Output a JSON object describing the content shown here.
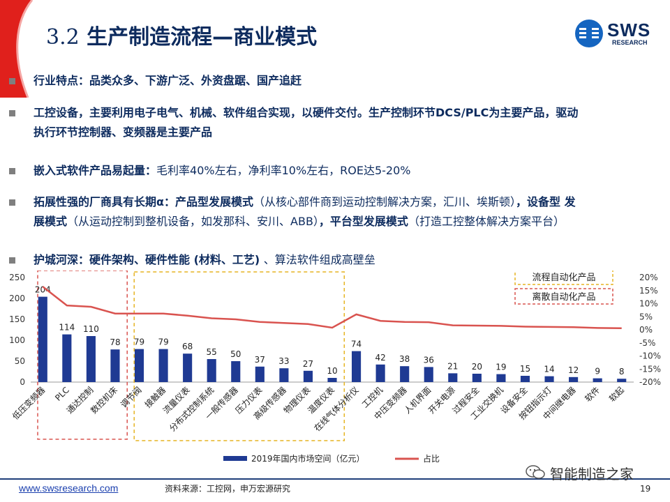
{
  "slide": {
    "title_num": "3.2",
    "title_text": "生产制造流程—商业模式",
    "logo_text": "SWS",
    "logo_sub": "RESEARCH",
    "page_number": "19",
    "url": "www.swsresearch.com",
    "source": "资料来源：工控网，申万宏源研究",
    "watermark": "智能制造之家",
    "accent_red": "#e0201c",
    "navy": "#0d2b5e"
  },
  "bullets": [
    {
      "line1_bold": "行业特点：品类众多、下游广泛、外资盘踞、国产追赶"
    },
    {
      "line1_bold": "工控设备，主要利用电子电气、机械、软件组合实现，以硬件交付。生产控制环节DCS/PLC为主要产品，驱动",
      "line2_bold": "执行环节控制器、变频器是主要产品"
    },
    {
      "b": "嵌入式软件产品易起量：",
      "n": "毛利率40%左右，净利率10%左右，ROE达5-20%"
    },
    {
      "b1": "拓展性强的厂商具有长期α：产品型发展模式",
      "n1": "（从核心部件商到运动控制解决方案，汇川、埃斯顿）",
      "b2": "，设备型 发",
      "b3": "展模式",
      "n2": "（从运动控制到整机设备，如发那科、安川、ABB）",
      "b4": "，平台型发展模式",
      "n3": "（打造工控整体解决方案平台）"
    },
    {
      "b1": "护城河深：硬件架构、硬件性能",
      "n1": " (材料、工艺) ",
      "n2": "、算法软件组成高壁垒"
    }
  ],
  "chart_data": {
    "type": "bar+line",
    "categories": [
      "低压变频器",
      "PLC",
      "通达控制",
      "数控机床",
      "调节阀",
      "接触器",
      "流量仪表",
      "分布式控制系统",
      "一般传感器",
      "压力仪表",
      "高级传感器",
      "物理仪表",
      "温度仪表",
      "在线气体分析仪",
      "工控机",
      "中压变频器",
      "人机界面",
      "开关电源",
      "过程安全",
      "工业交换机",
      "设备安全",
      "按钮指示灯",
      "中间继电器",
      "软件",
      "软起"
    ],
    "series": [
      {
        "name": "2019年国内市场空间（亿元）",
        "type": "bar",
        "axis": "left",
        "color": "#1f3a93",
        "values": [
          204,
          114,
          110,
          78,
          79,
          79,
          68,
          55,
          50,
          37,
          33,
          27,
          10,
          74,
          42,
          38,
          36,
          21,
          20,
          19,
          15,
          14,
          12,
          9,
          8
        ]
      },
      {
        "name": "占比",
        "type": "line",
        "axis": "right",
        "color": "#d9534f",
        "values": [
          16.5,
          9.3,
          8.8,
          6.2,
          6.2,
          6.2,
          5.4,
          4.4,
          4.0,
          3.0,
          2.6,
          2.2,
          0.8,
          5.9,
          3.4,
          3.0,
          2.9,
          1.7,
          1.6,
          1.5,
          1.2,
          1.1,
          1.0,
          0.7,
          0.6
        ]
      }
    ],
    "left_axis": {
      "ylim": [
        0,
        250
      ],
      "ticks": [
        "0",
        "50",
        "100",
        "150",
        "200",
        "250"
      ]
    },
    "right_axis": {
      "ylim": [
        -20,
        20
      ],
      "ticks": [
        "-20%",
        "-15%",
        "-10%",
        "-5%",
        "0%",
        "5%",
        "10%",
        "15%",
        "20%"
      ]
    },
    "groups": [
      {
        "label": "离散自动化产品",
        "color": "#d9534f",
        "categories_range": [
          0,
          3
        ]
      },
      {
        "label": "流程自动化产品",
        "color": "#e6b422",
        "categories_range": [
          4,
          12
        ]
      }
    ],
    "legend_position": "bottom"
  }
}
